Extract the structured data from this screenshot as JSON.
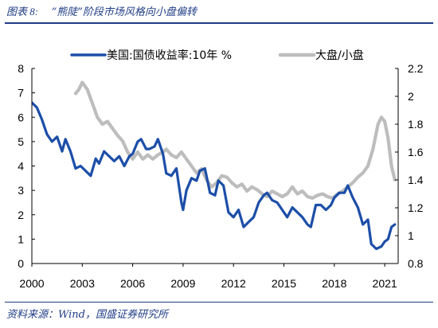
{
  "figure": {
    "label": "图表 8:",
    "title": "“熊陡”阶段市场风格向小盘偏转"
  },
  "source": "资料来源：Wind，国盛证券研究所",
  "colors": {
    "series_left": "#1c4ea8",
    "series_right": "#bdbdbd",
    "axis": "#000000",
    "title": "#1f3d86"
  },
  "chart_data": {
    "type": "line",
    "title": "“熊陡”阶段市场风格向小盘偏转",
    "xlabel": "",
    "ylabel_left": "",
    "ylabel_right": "",
    "xlim": [
      2000,
      2021.8
    ],
    "ylim_left": [
      0,
      8
    ],
    "ylim_right": [
      0.8,
      2.2
    ],
    "x_ticks": [
      "2000",
      "2003",
      "2006",
      "2009",
      "2012",
      "2015",
      "2018",
      "2021"
    ],
    "y_ticks_left": [
      "0",
      "1",
      "2",
      "3",
      "4",
      "5",
      "6",
      "7",
      "8"
    ],
    "y_ticks_right": [
      "0.8",
      "1",
      "1.2",
      "1.4",
      "1.6",
      "1.8",
      "2",
      "2.2"
    ],
    "legend_position": "top",
    "grid": false,
    "series": [
      {
        "name": "美国:国债收益率:10年 %",
        "axis": "left",
        "x": [
          2000.0,
          2000.3,
          2000.6,
          2000.9,
          2001.2,
          2001.5,
          2001.8,
          2002.0,
          2002.3,
          2002.6,
          2002.9,
          2003.2,
          2003.5,
          2003.8,
          2004.0,
          2004.3,
          2004.6,
          2004.9,
          2005.2,
          2005.5,
          2005.8,
          2006.0,
          2006.3,
          2006.5,
          2006.8,
          2007.0,
          2007.3,
          2007.5,
          2007.8,
          2008.0,
          2008.3,
          2008.6,
          2008.9,
          2009.0,
          2009.2,
          2009.5,
          2009.8,
          2010.0,
          2010.3,
          2010.6,
          2010.9,
          2011.1,
          2011.4,
          2011.7,
          2012.0,
          2012.3,
          2012.6,
          2012.9,
          2013.2,
          2013.5,
          2013.8,
          2014.0,
          2014.3,
          2014.6,
          2014.9,
          2015.2,
          2015.5,
          2015.8,
          2016.1,
          2016.4,
          2016.6,
          2016.9,
          2017.2,
          2017.5,
          2017.8,
          2018.0,
          2018.3,
          2018.6,
          2018.8,
          2019.1,
          2019.4,
          2019.7,
          2020.0,
          2020.2,
          2020.5,
          2020.8,
          2021.0,
          2021.2,
          2021.4,
          2021.6
        ],
        "values": [
          6.6,
          6.4,
          5.9,
          5.3,
          5.0,
          5.2,
          4.6,
          5.1,
          4.6,
          3.9,
          4.0,
          3.8,
          3.6,
          4.3,
          4.1,
          4.6,
          4.4,
          4.2,
          4.4,
          4.0,
          4.4,
          4.5,
          5.0,
          5.1,
          4.7,
          4.7,
          4.8,
          5.1,
          4.5,
          3.7,
          3.6,
          3.9,
          2.5,
          2.2,
          3.0,
          3.5,
          3.4,
          3.8,
          3.9,
          2.9,
          2.8,
          3.4,
          3.2,
          2.1,
          1.9,
          2.2,
          1.5,
          1.7,
          1.9,
          2.5,
          2.8,
          2.9,
          2.6,
          2.5,
          2.2,
          1.9,
          2.3,
          2.1,
          1.9,
          1.6,
          1.5,
          2.4,
          2.4,
          2.2,
          2.4,
          2.7,
          2.9,
          2.9,
          3.2,
          2.7,
          2.3,
          1.6,
          1.8,
          0.8,
          0.6,
          0.7,
          0.9,
          1.0,
          1.5,
          1.6
        ]
      },
      {
        "name": "大盘/小盘",
        "axis": "right",
        "x": [
          2002.6,
          2002.8,
          2003.0,
          2003.3,
          2003.6,
          2003.9,
          2004.2,
          2004.5,
          2004.8,
          2005.1,
          2005.4,
          2005.7,
          2006.0,
          2006.3,
          2006.6,
          2006.9,
          2007.2,
          2007.5,
          2007.8,
          2008.0,
          2008.3,
          2008.6,
          2008.9,
          2009.2,
          2009.5,
          2009.8,
          2010.1,
          2010.4,
          2010.7,
          2011.0,
          2011.3,
          2011.6,
          2011.9,
          2012.2,
          2012.5,
          2012.8,
          2013.1,
          2013.4,
          2013.7,
          2014.0,
          2014.3,
          2014.6,
          2014.9,
          2015.2,
          2015.5,
          2015.8,
          2016.1,
          2016.4,
          2016.7,
          2017.0,
          2017.3,
          2017.6,
          2017.9,
          2018.2,
          2018.5,
          2018.8,
          2019.1,
          2019.4,
          2019.7,
          2020.0,
          2020.3,
          2020.6,
          2020.8,
          2021.0,
          2021.2,
          2021.4,
          2021.6
        ],
        "values": [
          2.02,
          2.05,
          2.1,
          2.05,
          1.95,
          1.85,
          1.8,
          1.82,
          1.77,
          1.72,
          1.68,
          1.6,
          1.55,
          1.6,
          1.55,
          1.58,
          1.55,
          1.58,
          1.6,
          1.62,
          1.58,
          1.56,
          1.6,
          1.55,
          1.5,
          1.45,
          1.48,
          1.4,
          1.35,
          1.38,
          1.43,
          1.42,
          1.38,
          1.35,
          1.37,
          1.32,
          1.35,
          1.33,
          1.3,
          1.28,
          1.32,
          1.3,
          1.28,
          1.3,
          1.35,
          1.3,
          1.32,
          1.28,
          1.27,
          1.29,
          1.3,
          1.28,
          1.27,
          1.3,
          1.32,
          1.35,
          1.38,
          1.42,
          1.45,
          1.5,
          1.62,
          1.8,
          1.85,
          1.82,
          1.7,
          1.5,
          1.4
        ]
      }
    ]
  }
}
